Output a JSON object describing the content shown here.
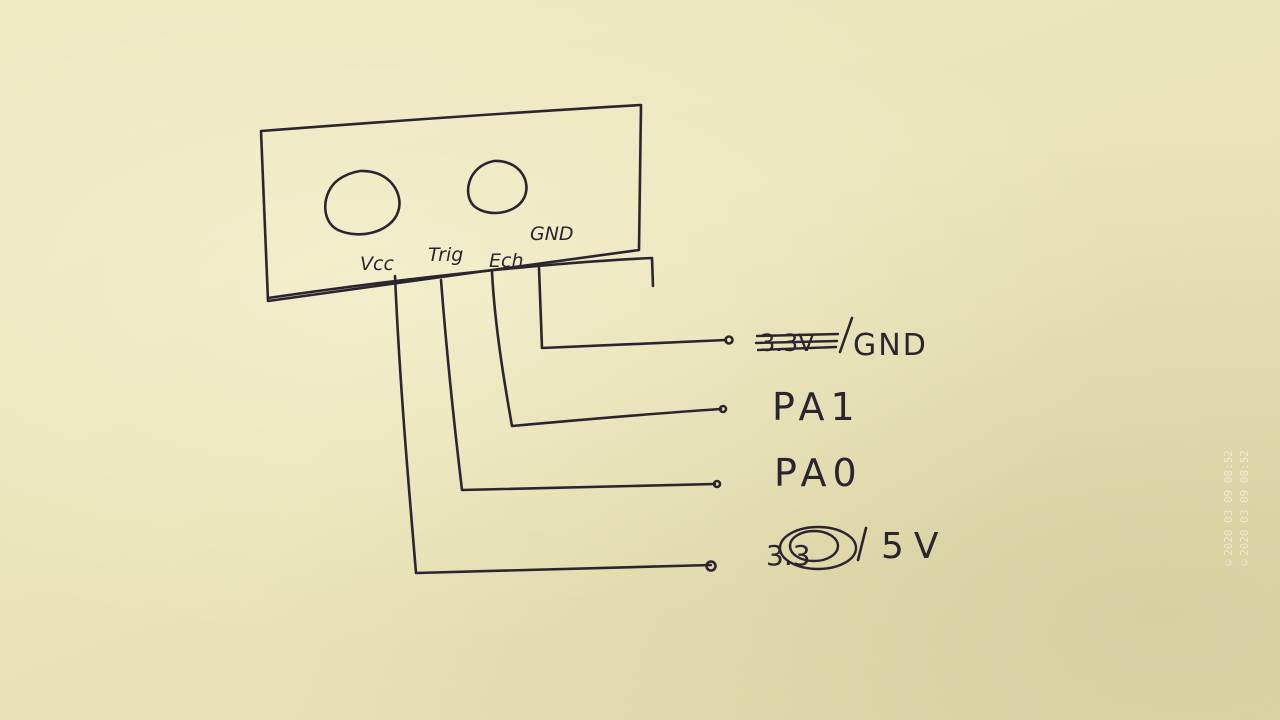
{
  "sensor": {
    "pins": [
      "Vcc",
      "Trig",
      "Ech",
      "GND"
    ]
  },
  "connections": [
    {
      "label": "GND",
      "struck": "3.3V"
    },
    {
      "label": "PA1"
    },
    {
      "label": "PA0"
    },
    {
      "label": "5V",
      "struck": "3.3"
    }
  ],
  "watermark": [
    "©2020 03 09 08:52",
    "©2020 03 09 08:52"
  ]
}
